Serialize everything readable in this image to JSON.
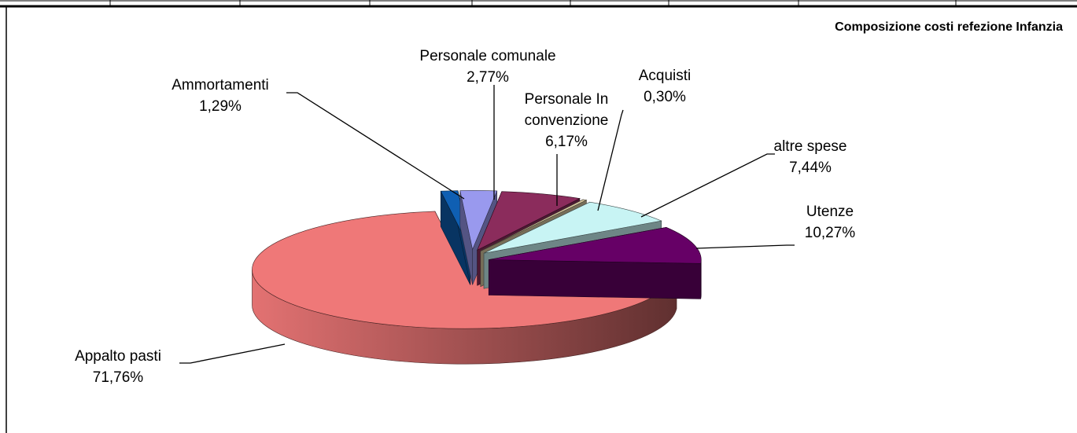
{
  "chart_data": {
    "type": "pie",
    "title": "Composizione costi refezione Infanzia",
    "categories": [
      "Ammortamenti",
      "Personale comunale",
      "Personale In convenzione",
      "Acquisti",
      "altre spese",
      "Utenze",
      "Appalto  pasti"
    ],
    "values": [
      1.29,
      2.77,
      6.17,
      0.3,
      7.44,
      10.27,
      71.76
    ],
    "value_labels": [
      "1,29%",
      "2,77%",
      "6,17%",
      "0,30%",
      "7,44%",
      "10,27%",
      "71,76%"
    ],
    "colors": [
      "#0f5fb3",
      "#9999ee",
      "#8b2c5c",
      "#d8c8a0",
      "#c8f4f4",
      "#660066",
      "#ef7878"
    ]
  }
}
